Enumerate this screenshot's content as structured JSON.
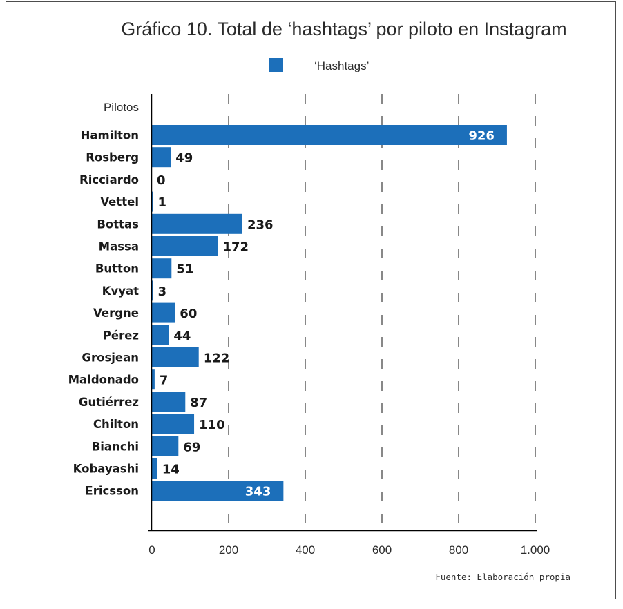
{
  "chart_data": {
    "type": "bar",
    "orientation": "horizontal",
    "title": "Gráfico 10. Total de ‘hashtags’ por piloto en Instagram",
    "y_caption": "Pilotos",
    "legend": {
      "label": "‘Hashtags’",
      "position": "top-center"
    },
    "source": "Fuente: Elaboración propia",
    "categories": [
      "Hamilton",
      "Rosberg",
      "Ricciardo",
      "Vettel",
      "Bottas",
      "Massa",
      "Button",
      "Kvyat",
      "Vergne",
      "Pérez",
      "Grosjean",
      "Maldonado",
      "Gutiérrez",
      "Chilton",
      "Bianchi",
      "Kobayashi",
      "Ericsson"
    ],
    "series": [
      {
        "name": "‘Hashtags’",
        "values": [
          926,
          49,
          0,
          1,
          236,
          172,
          51,
          3,
          60,
          44,
          122,
          7,
          87,
          110,
          69,
          14,
          343
        ]
      }
    ],
    "value_labels": [
      "926",
      "49",
      "0",
      "1",
      "236",
      "172",
      "51",
      "3",
      "60",
      "44",
      "122",
      "7",
      "87",
      "110",
      "69",
      "14",
      "343"
    ],
    "x_ticks": [
      0,
      200,
      400,
      600,
      800,
      1000
    ],
    "x_tick_labels": [
      "0",
      "200",
      "400",
      "600",
      "800",
      "1.000"
    ],
    "xlim": [
      0,
      1000
    ],
    "grid": "dashed-vertical",
    "bar_color": "#1c6fba"
  }
}
